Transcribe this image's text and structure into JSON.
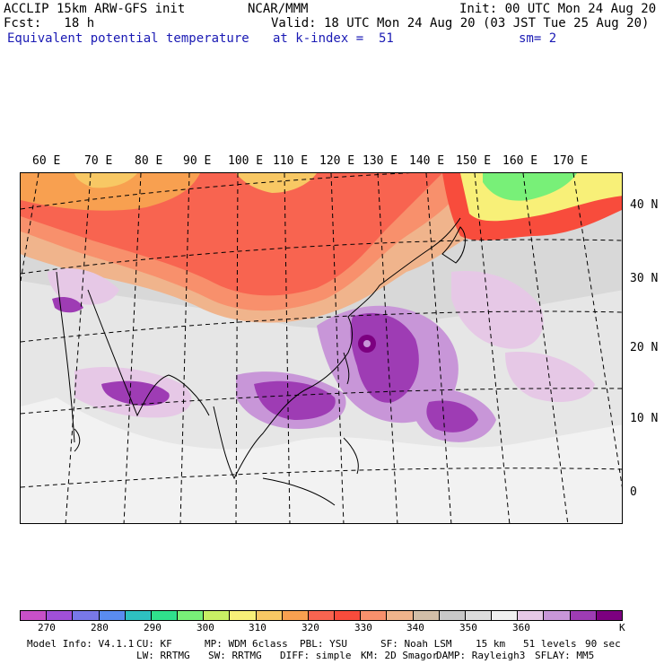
{
  "header": {
    "line1_left": "ACCLIP 15km ARW-GFS init",
    "line1_center": "NCAR/MMM",
    "line1_right": "Init: 00 UTC Mon 24 Aug 20",
    "line2_left": "Fcst:   18 h",
    "line2_right": "Valid: 18 UTC Mon 24 Aug 20 (03 JST Tue 25 Aug 20)",
    "line3_left": "Equivalent potential temperature",
    "line3_center": "at k-index =  51",
    "line3_right": "sm= 2"
  },
  "map": {
    "lon_labels": [
      "60 E",
      "70 E",
      "80 E",
      "90 E",
      "100 E",
      "110 E",
      "120 E",
      "130 E",
      "140 E",
      "150 E",
      "160 E",
      "170 E"
    ],
    "lat_labels": [
      "40 N",
      "30 N",
      "20 N",
      "10 N",
      "0"
    ]
  },
  "colorbar": {
    "colors": [
      "#c850c8",
      "#a050d8",
      "#7878e8",
      "#5a8cf0",
      "#2ec0c0",
      "#30e08c",
      "#78f078",
      "#c8f064",
      "#f8f078",
      "#f8c864",
      "#f8a050",
      "#f86450",
      "#f84c3c",
      "#f8906c",
      "#f0b48c",
      "#d2bea8",
      "#c8c8c8",
      "#dcdcdc",
      "#f0f0f0",
      "#e6c8e6",
      "#c896d8",
      "#9e3cb4",
      "#7c0080"
    ],
    "ticks": [
      "270",
      "280",
      "290",
      "300",
      "310",
      "320",
      "330",
      "340",
      "350",
      "360"
    ],
    "unit": "K"
  },
  "footer": {
    "line1": [
      "Model Info: V4.1.1",
      "CU: KF",
      "MP: WDM 6class",
      "PBL: YSU",
      "SF: Noah LSM",
      "15 km",
      "51 levels",
      "90 sec"
    ],
    "line2": [
      "LW: RRTMG",
      "SW: RRTMG",
      "DIFF: simple",
      "KM: 2D Smagor",
      "DAMP: Rayleigh3",
      "SFLAY: MM5"
    ]
  }
}
